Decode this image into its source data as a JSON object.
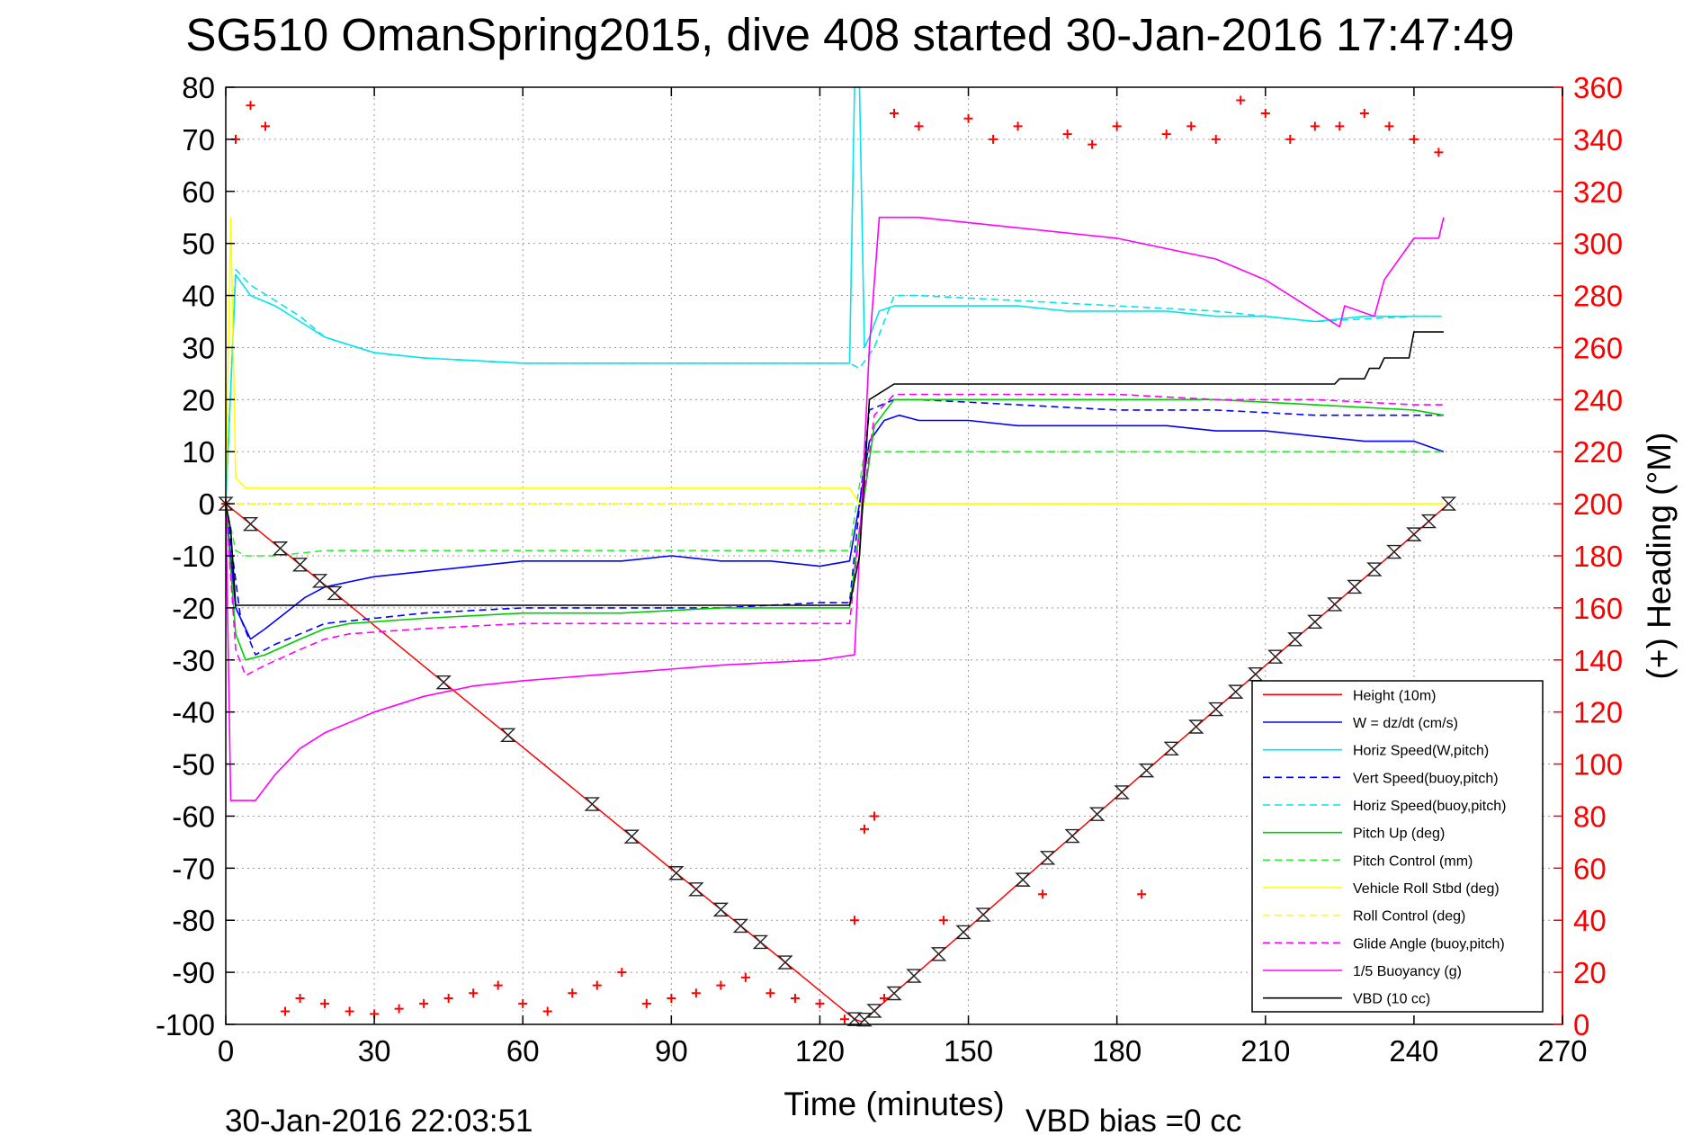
{
  "chart_data": {
    "type": "line",
    "title": "SG510 OmanSpring2015, dive 408 started 30-Jan-2016 17:47:49",
    "xlabel": "Time (minutes)",
    "ylabel": "",
    "y2label": "(+) Heading (°M)",
    "footer_left": "30-Jan-2016 22:03:51",
    "footer_right": "VBD bias =0 cc",
    "xlim": [
      0,
      270
    ],
    "ylim": [
      -100,
      80
    ],
    "y2lim": [
      0,
      360
    ],
    "xticks": [
      "0",
      "30",
      "60",
      "90",
      "120",
      "150",
      "180",
      "210",
      "240",
      "270"
    ],
    "yticks": [
      "80",
      "70",
      "60",
      "50",
      "40",
      "30",
      "20",
      "10",
      "0",
      "-10",
      "-20",
      "-30",
      "-40",
      "-50",
      "-60",
      "-70",
      "-80",
      "-90",
      "-100"
    ],
    "y2ticks": [
      "360",
      "340",
      "320",
      "300",
      "280",
      "260",
      "240",
      "220",
      "200",
      "180",
      "160",
      "140",
      "120",
      "100",
      "80",
      "60",
      "40",
      "20",
      "0"
    ],
    "grid": true,
    "legend_position": "lower-right",
    "legend": [
      "Height (10m)",
      "W = dz/dt (cm/s)",
      "Horiz Speed(W,pitch)",
      "Vert Speed(buoy,pitch)",
      "Horiz Speed(buoy,pitch)",
      "Pitch Up (deg)",
      "Pitch Control (mm)",
      "Vehicle Roll Stbd (deg)",
      "Roll Control (deg)",
      "Glide Angle (buoy,pitch)",
      "1/5 Buoyancy (g)",
      "VBD (10 cc)"
    ],
    "series": [
      {
        "name": "Height (10m)",
        "color": "#ff0000",
        "style": "solid",
        "axis": "left",
        "x": [
          0,
          127,
          128.5,
          247
        ],
        "y": [
          0,
          -99,
          -99.5,
          0
        ]
      },
      {
        "name": "W = dz/dt (cm/s)",
        "color": "#0000ff",
        "style": "solid",
        "axis": "left",
        "x": [
          0,
          2,
          5,
          8,
          12,
          16,
          20,
          25,
          30,
          40,
          50,
          60,
          70,
          80,
          90,
          100,
          110,
          120,
          126,
          128,
          130,
          133,
          136,
          140,
          150,
          160,
          170,
          180,
          190,
          200,
          210,
          220,
          230,
          240,
          246
        ],
        "y": [
          0,
          -20,
          -26,
          -24,
          -21,
          -18,
          -16,
          -15,
          -14,
          -13,
          -12,
          -11,
          -11,
          -11,
          -10,
          -11,
          -11,
          -12,
          -11,
          0,
          12,
          16,
          17,
          16,
          16,
          15,
          15,
          15,
          15,
          14,
          14,
          13,
          12,
          12,
          10
        ]
      },
      {
        "name": "Horiz Speed(W,pitch)",
        "color": "#00e5ee",
        "style": "solid",
        "axis": "left",
        "x": [
          0,
          2,
          5,
          10,
          15,
          20,
          30,
          40,
          60,
          80,
          100,
          120,
          126,
          127,
          128,
          129,
          130,
          132,
          135,
          140,
          150,
          160,
          170,
          180,
          190,
          200,
          210,
          220,
          230,
          240,
          245
        ],
        "y": [
          0,
          44,
          40,
          38,
          35,
          32,
          29,
          28,
          27,
          27,
          27,
          27,
          27,
          80,
          80,
          30,
          32,
          37,
          38,
          38,
          38,
          38,
          37,
          37,
          37,
          36,
          36,
          35,
          36,
          36,
          36
        ]
      },
      {
        "name": "Vert Speed(buoy,pitch)",
        "color": "#0000ff",
        "style": "dashed",
        "axis": "left",
        "x": [
          0,
          3,
          6,
          10,
          20,
          40,
          60,
          80,
          100,
          120,
          126,
          130,
          135,
          140,
          160,
          180,
          200,
          220,
          240,
          246
        ],
        "y": [
          0,
          -22,
          -29,
          -27,
          -23,
          -21,
          -20,
          -20,
          -20,
          -19,
          -19,
          18,
          20,
          20,
          19,
          18,
          18,
          17,
          17,
          17
        ]
      },
      {
        "name": "Horiz Speed(buoy,pitch)",
        "color": "#00e5ee",
        "style": "dashed",
        "axis": "left",
        "x": [
          0,
          2,
          5,
          10,
          15,
          20,
          30,
          40,
          60,
          80,
          100,
          120,
          126,
          128,
          131,
          135,
          140,
          160,
          180,
          200,
          220,
          240,
          246
        ],
        "y": [
          0,
          45,
          42,
          39,
          36,
          32,
          29,
          28,
          27,
          27,
          27,
          27,
          27,
          26,
          30,
          40,
          40,
          39,
          38,
          37,
          35,
          36,
          36
        ]
      },
      {
        "name": "Pitch Up (deg)",
        "color": "#00cc00",
        "style": "solid",
        "axis": "left",
        "x": [
          0,
          2,
          4,
          8,
          15,
          20,
          25,
          40,
          60,
          80,
          100,
          120,
          126,
          128,
          131,
          135,
          140,
          160,
          180,
          200,
          220,
          240,
          246
        ],
        "y": [
          0,
          -25,
          -30,
          -29,
          -26,
          -24,
          -23,
          -22,
          -21,
          -21,
          -20,
          -20,
          -20,
          -5,
          15,
          20,
          20,
          20,
          20,
          20,
          19,
          18,
          17
        ]
      },
      {
        "name": "Pitch Control (mm)",
        "color": "#33ee33",
        "style": "dashed",
        "axis": "left",
        "x": [
          0,
          2,
          4,
          10,
          20,
          40,
          60,
          80,
          100,
          120,
          126,
          129,
          132,
          135,
          140,
          160,
          180,
          200,
          220,
          240,
          246
        ],
        "y": [
          0,
          -9,
          -10,
          -10,
          -9,
          -9,
          -9,
          -9,
          -9,
          -9,
          -9,
          10,
          10,
          10,
          10,
          10,
          10,
          10,
          10,
          10,
          10
        ]
      },
      {
        "name": "Vehicle Roll Stbd (deg)",
        "color": "#ffff00",
        "style": "solid",
        "axis": "left",
        "x": [
          0,
          1,
          2,
          4,
          10,
          30,
          60,
          90,
          120,
          126,
          128,
          130,
          140,
          160,
          180,
          200,
          220,
          240,
          246
        ],
        "y": [
          0,
          55,
          5,
          3,
          3,
          3,
          3,
          3,
          3,
          3,
          0,
          0,
          0,
          0,
          0,
          0,
          0,
          0,
          0
        ]
      },
      {
        "name": "Roll Control (deg)",
        "color": "#ffff00",
        "style": "dashed",
        "axis": "left",
        "x": [
          0,
          2,
          4,
          10,
          30,
          60,
          90,
          120,
          126,
          128,
          130,
          140,
          160,
          180,
          200,
          220,
          240,
          246
        ],
        "y": [
          0,
          0,
          0,
          0,
          0,
          0,
          0,
          0,
          0,
          0,
          0,
          0,
          0,
          0,
          0,
          0,
          0,
          0
        ]
      },
      {
        "name": "Glide Angle (buoy,pitch)",
        "color": "#ff00ff",
        "style": "dashed",
        "axis": "left",
        "x": [
          0,
          2,
          4,
          8,
          15,
          20,
          25,
          40,
          60,
          80,
          100,
          120,
          126,
          128,
          131,
          135,
          140,
          160,
          180,
          200,
          220,
          240,
          246
        ],
        "y": [
          0,
          -28,
          -33,
          -31,
          -28,
          -26,
          -25,
          -24,
          -23,
          -23,
          -23,
          -23,
          -23,
          -5,
          17,
          21,
          21,
          21,
          21,
          20,
          20,
          19,
          19
        ]
      },
      {
        "name": "1/5 Buoyancy (g)",
        "color": "#ff00ff",
        "style": "solid",
        "axis": "left",
        "x": [
          0,
          1,
          2,
          6,
          10,
          15,
          20,
          30,
          40,
          50,
          60,
          80,
          100,
          120,
          127,
          130,
          132,
          140,
          160,
          180,
          200,
          210,
          220,
          225,
          226,
          232,
          234,
          240,
          245,
          246
        ],
        "y": [
          0,
          -57,
          -57,
          -57,
          -52,
          -47,
          -44,
          -40,
          -37,
          -35,
          -34,
          -32.5,
          -31,
          -30,
          -29,
          30,
          55,
          55,
          53,
          51,
          47,
          43,
          37,
          34,
          38,
          36,
          43,
          51,
          51,
          55
        ]
      },
      {
        "name": "VBD (10 cc)",
        "color": "#000000",
        "style": "solid",
        "axis": "left",
        "x": [
          0,
          1,
          2,
          10,
          40,
          80,
          120,
          126,
          128,
          130,
          135,
          160,
          190,
          224,
          225,
          230,
          231,
          233,
          234,
          239,
          240,
          246
        ],
        "y": [
          0,
          -5,
          -19.5,
          -19.5,
          -19.5,
          -19.5,
          -19.5,
          -19.5,
          -10,
          20,
          23,
          23,
          23,
          23,
          24,
          24,
          26,
          26,
          28,
          28,
          33,
          33
        ]
      },
      {
        "name": "(+) Heading",
        "color": "#ff0000",
        "style": "markers",
        "axis": "right",
        "x": [
          0,
          2,
          5,
          8,
          12,
          15,
          20,
          25,
          30,
          35,
          40,
          45,
          50,
          55,
          60,
          65,
          70,
          75,
          80,
          85,
          90,
          95,
          100,
          105,
          110,
          115,
          120,
          125,
          127,
          129,
          131,
          133,
          135,
          140,
          145,
          150,
          155,
          160,
          165,
          170,
          175,
          180,
          185,
          190,
          195,
          200,
          205,
          210,
          215,
          220,
          225,
          230,
          235,
          240,
          245
        ],
        "y": [
          200,
          340,
          353,
          345,
          5,
          10,
          8,
          5,
          4,
          6,
          8,
          10,
          12,
          15,
          8,
          5,
          12,
          15,
          20,
          8,
          10,
          12,
          15,
          18,
          12,
          10,
          8,
          2,
          40,
          75,
          80,
          10,
          350,
          345,
          40,
          348,
          340,
          345,
          50,
          342,
          338,
          345,
          50,
          342,
          345,
          340,
          355,
          350,
          340,
          345,
          345,
          350,
          345,
          340,
          335
        ]
      }
    ]
  }
}
